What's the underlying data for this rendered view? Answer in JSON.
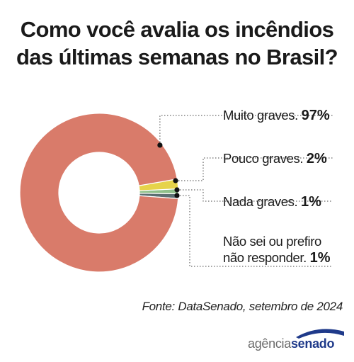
{
  "title_lines": [
    "Como você avalia os incêndios",
    "das últimas semanas no Brasil?"
  ],
  "chart_data": {
    "type": "pie",
    "categories": [
      "Muito graves.",
      "Pouco graves.",
      "Nada graves.",
      "Não sei ou prefiro não responder."
    ],
    "label_lines": [
      [
        "Muito graves."
      ],
      [
        "Pouco graves."
      ],
      [
        "Nada graves."
      ],
      [
        "Não sei ou",
        "prefiro",
        "não responder."
      ]
    ],
    "values": [
      97,
      2,
      1,
      1
    ],
    "value_labels": [
      "97%",
      "2%",
      "1%",
      "1%"
    ],
    "colors": [
      "#d97b6a",
      "#e6d34a",
      "#8fc08a",
      "#5c6f72"
    ],
    "donut": true
  },
  "source": "Fonte: DataSenado, setembro de 2024",
  "logo": {
    "part1": "agência",
    "part2": "senado",
    "arc_color": "#1f3a8a"
  }
}
